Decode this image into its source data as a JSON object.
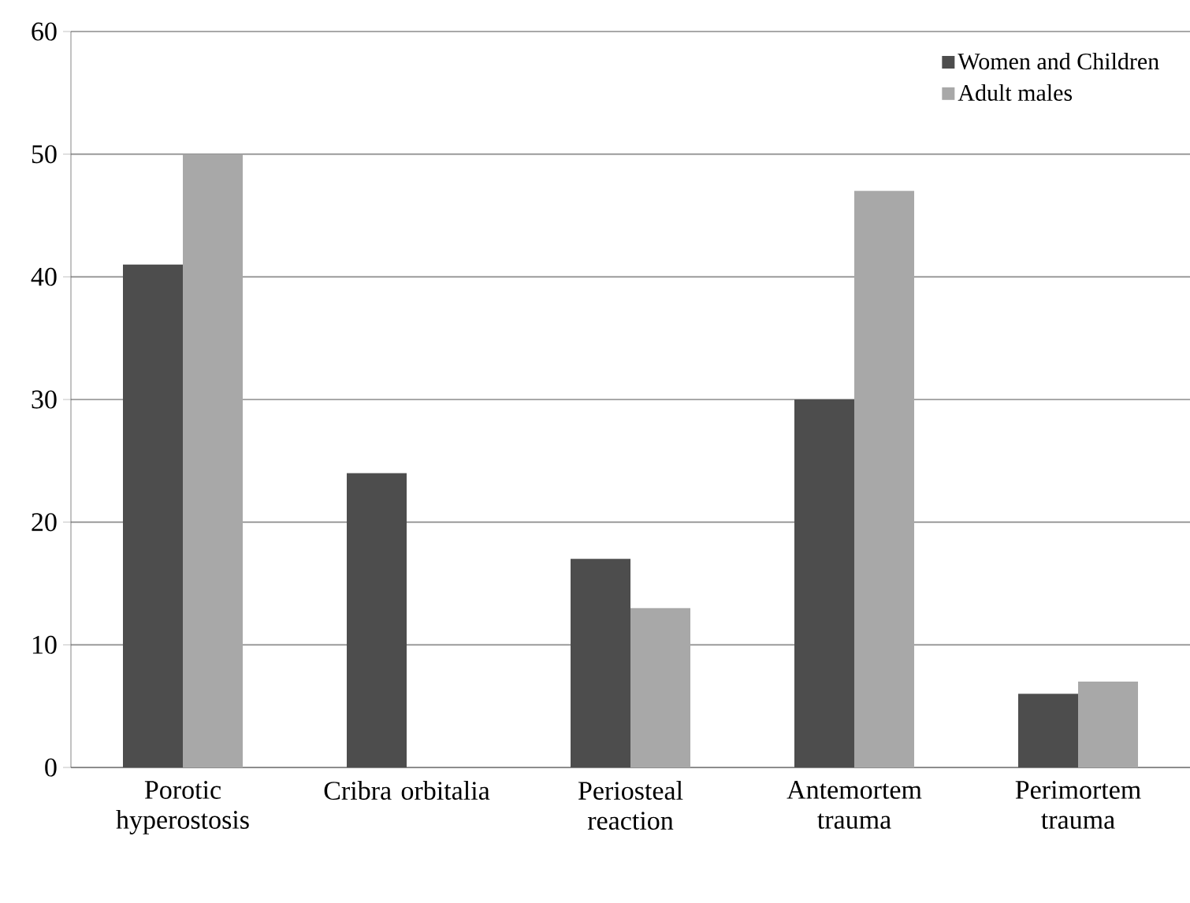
{
  "chart_data": {
    "type": "bar",
    "categories": [
      "Porotic hyperostosis",
      "Cribra orbitalia",
      "Periosteal reaction",
      "Antemortem trauma",
      "Perimortem trauma"
    ],
    "series": [
      {
        "name": "Women and Children",
        "color": "#4d4d4d",
        "values": [
          41,
          24,
          17,
          30,
          6
        ]
      },
      {
        "name": "Adult males",
        "color": "#a8a8a8",
        "values": [
          50,
          null,
          13,
          47,
          7
        ]
      }
    ],
    "ylim": [
      0,
      60
    ],
    "yticks": [
      0,
      10,
      20,
      30,
      40,
      50,
      60
    ],
    "grid": "y",
    "legend": "top right"
  }
}
